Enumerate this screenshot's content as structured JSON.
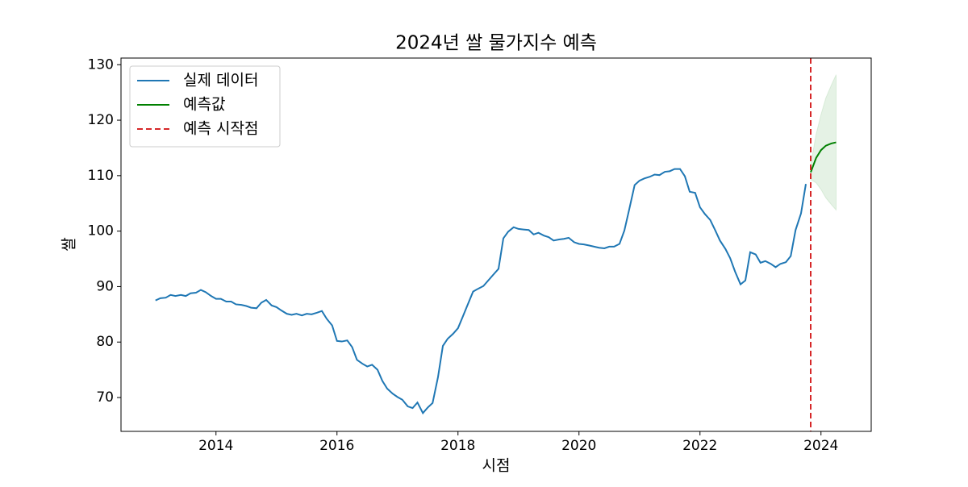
{
  "chart_data": {
    "type": "line",
    "title": "2024년 쌀 물가지수 예측",
    "xlabel": "시점",
    "ylabel": "쌀",
    "xlim": [
      2012.43,
      2024.83
    ],
    "xticks": [
      2014,
      2016,
      2018,
      2020,
      2022,
      2024
    ],
    "ylim": [
      63.9,
      131.2
    ],
    "yticks": [
      70,
      80,
      90,
      100,
      110,
      120,
      130
    ],
    "legend": "upper left",
    "series": [
      {
        "name": "실제 데이터",
        "color": "#1f77b4",
        "x": [
          2013.0,
          2013.08,
          2013.17,
          2013.25,
          2013.33,
          2013.42,
          2013.5,
          2013.58,
          2013.67,
          2013.75,
          2013.83,
          2013.92,
          2014.0,
          2014.08,
          2014.17,
          2014.25,
          2014.33,
          2014.42,
          2014.5,
          2014.58,
          2014.67,
          2014.75,
          2014.83,
          2014.92,
          2015.0,
          2015.08,
          2015.17,
          2015.25,
          2015.33,
          2015.42,
          2015.5,
          2015.58,
          2015.67,
          2015.75,
          2015.83,
          2015.92,
          2016.0,
          2016.08,
          2016.17,
          2016.25,
          2016.33,
          2016.42,
          2016.5,
          2016.58,
          2016.67,
          2016.75,
          2016.83,
          2016.92,
          2017.0,
          2017.08,
          2017.17,
          2017.25,
          2017.33,
          2017.42,
          2017.5,
          2017.58,
          2017.67,
          2017.75,
          2017.83,
          2017.92,
          2018.0,
          2018.08,
          2018.17,
          2018.25,
          2018.33,
          2018.42,
          2018.5,
          2018.58,
          2018.67,
          2018.75,
          2018.83,
          2018.92,
          2019.0,
          2019.08,
          2019.17,
          2019.25,
          2019.33,
          2019.42,
          2019.5,
          2019.58,
          2019.67,
          2019.75,
          2019.83,
          2019.92,
          2020.0,
          2020.08,
          2020.17,
          2020.25,
          2020.33,
          2020.42,
          2020.5,
          2020.58,
          2020.67,
          2020.75,
          2020.83,
          2020.92,
          2021.0,
          2021.08,
          2021.17,
          2021.25,
          2021.33,
          2021.42,
          2021.5,
          2021.58,
          2021.67,
          2021.75,
          2021.83,
          2021.92,
          2022.0,
          2022.08,
          2022.17,
          2022.25,
          2022.33,
          2022.42,
          2022.5,
          2022.58,
          2022.67,
          2022.75,
          2022.83,
          2022.92,
          2023.0,
          2023.08,
          2023.17,
          2023.25,
          2023.33,
          2023.42,
          2023.5,
          2023.58,
          2023.67,
          2023.75
        ],
        "values": [
          87.5,
          87.9,
          88.0,
          88.5,
          88.3,
          88.5,
          88.3,
          88.8,
          88.9,
          89.4,
          89.0,
          88.3,
          87.8,
          87.8,
          87.3,
          87.3,
          86.8,
          86.7,
          86.5,
          86.2,
          86.1,
          87.1,
          87.6,
          86.6,
          86.3,
          85.7,
          85.1,
          84.9,
          85.1,
          84.8,
          85.1,
          85.0,
          85.3,
          85.6,
          84.2,
          83.0,
          80.2,
          80.1,
          80.3,
          79.1,
          76.8,
          76.1,
          75.6,
          75.9,
          75.0,
          73.0,
          71.6,
          70.7,
          70.1,
          69.6,
          68.4,
          68.1,
          69.1,
          67.2,
          68.2,
          69.0,
          73.7,
          79.3,
          80.6,
          81.5,
          82.5,
          84.6,
          87.0,
          89.1,
          89.6,
          90.1,
          91.1,
          92.1,
          93.2,
          98.7,
          99.9,
          100.7,
          100.4,
          100.3,
          100.2,
          99.4,
          99.7,
          99.2,
          98.9,
          98.3,
          98.5,
          98.6,
          98.8,
          98.0,
          97.7,
          97.6,
          97.4,
          97.2,
          97.0,
          96.9,
          97.2,
          97.2,
          97.7,
          100.1,
          103.9,
          108.3,
          109.1,
          109.5,
          109.8,
          110.2,
          110.1,
          110.7,
          110.8,
          111.2,
          111.2,
          109.9,
          107.1,
          106.9,
          104.3,
          103.1,
          102.0,
          100.2,
          98.3,
          96.8,
          95.1,
          92.7,
          90.4,
          91.1,
          96.2,
          95.8,
          94.3,
          94.6,
          94.1,
          93.5,
          94.1,
          94.4,
          95.5,
          100.2,
          103.2,
          108.5
        ]
      },
      {
        "name": "예측값",
        "color": "#008000",
        "x": [
          2023.83,
          2023.92,
          2024.0,
          2024.08,
          2024.17,
          2024.25
        ],
        "values": [
          110.6,
          113.2,
          114.6,
          115.4,
          115.8,
          116.0
        ],
        "lower": [
          109.3,
          108.7,
          107.5,
          106.0,
          104.8,
          103.8
        ],
        "upper": [
          112.0,
          117.5,
          121.0,
          124.0,
          126.3,
          128.2
        ]
      }
    ],
    "vlines": [
      {
        "name": "예측 시작점",
        "x": 2023.83,
        "color": "#d62728"
      }
    ]
  }
}
